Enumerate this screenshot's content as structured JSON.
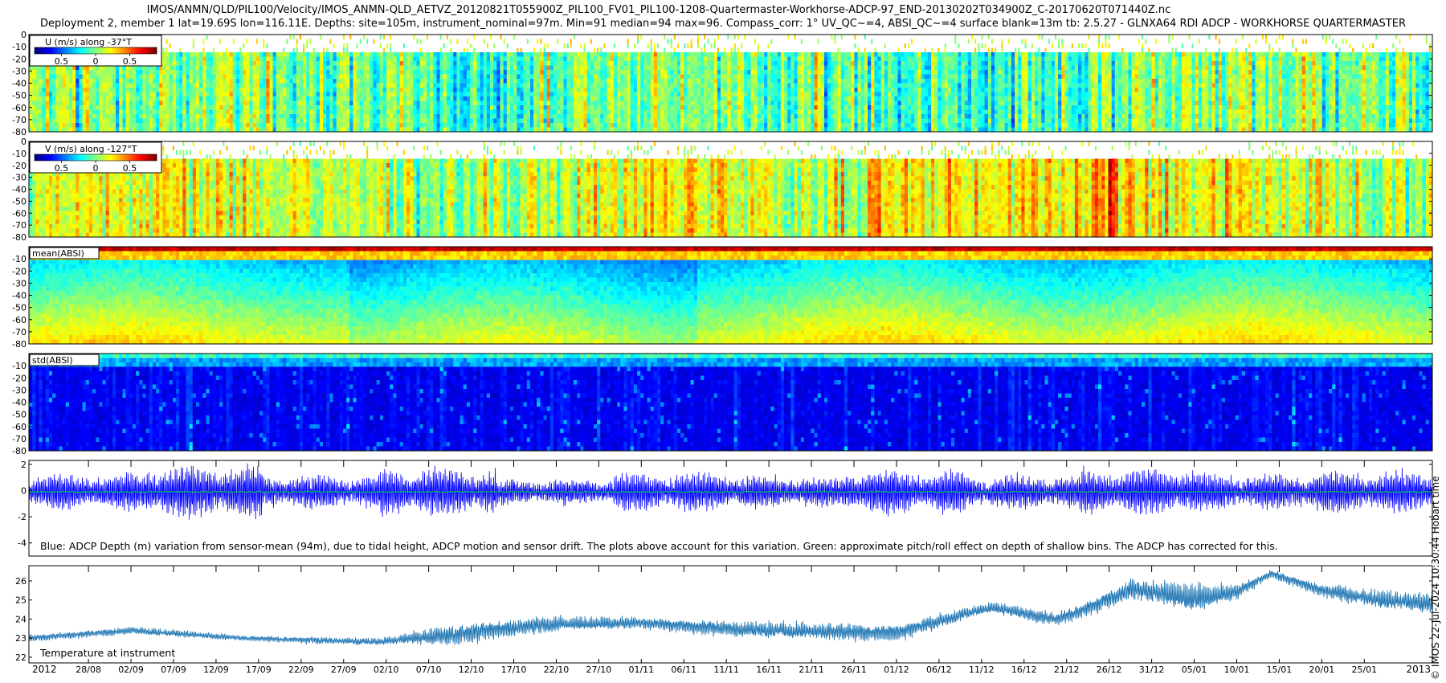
{
  "header": {
    "title_line_1": "IMOS/ANMN/QLD/PIL100/Velocity/IMOS_ANMN-QLD_AETVZ_20120821T055900Z_PIL100_FV01_PIL100-1208-Quartermaster-Workhorse-ADCP-97_END-20130202T034900Z_C-20170620T071440Z.nc",
    "title_line_2": "Deployment 2, member 1 lat=19.69S lon=116.11E. Depths: site=105m, instrument_nominal=97m. Min=91 median=94 max=96. Compass_corr: 1° UV_QC~=4, ABSI_QC~=4 surface blank=13m tb: 2.5.27 - GLNXA64 RDI ADCP - WORKHORSE QUARTERMASTER"
  },
  "side_note": "© IMOS 22-Jul-2024 10:30:44 Hobart time",
  "chart_data": [
    {
      "type": "heatmap",
      "id": "u",
      "legend_title": "U (m/s) along -37°T",
      "colorbar_ticks": [
        "0.5",
        "0",
        "0.5"
      ],
      "ylim": [
        -80,
        0
      ],
      "yticks": [
        0,
        -10,
        -20,
        -30,
        -40,
        -50,
        -60,
        -70,
        -80
      ],
      "surface_blank_m": 13,
      "colormap": "jet",
      "value_range": [
        -0.5,
        0.5
      ],
      "base_value": -0.02,
      "variability": 0.2
    },
    {
      "type": "heatmap",
      "id": "v",
      "legend_title": "V (m/s) along -127°T",
      "colorbar_ticks": [
        "0.5",
        "0",
        "0.5"
      ],
      "ylim": [
        -80,
        0
      ],
      "yticks": [
        0,
        -10,
        -20,
        -30,
        -40,
        -50,
        -60,
        -70,
        -80
      ],
      "surface_blank_m": 13,
      "colormap": "jet",
      "value_range": [
        -0.5,
        0.5
      ],
      "base_value": 0.08,
      "variability": 0.18
    },
    {
      "type": "heatmap",
      "id": "mean-absi",
      "legend_title": "mean(ABSI)",
      "ylim": [
        -80,
        0
      ],
      "yticks": [
        -10,
        -20,
        -30,
        -40,
        -50,
        -60,
        -70,
        -80
      ],
      "colormap": "jet"
    },
    {
      "type": "heatmap",
      "id": "std-absi",
      "legend_title": "std(ABSI)",
      "ylim": [
        -80,
        0
      ],
      "yticks": [
        -10,
        -20,
        -30,
        -40,
        -50,
        -60,
        -70,
        -80
      ],
      "colormap": "jet"
    },
    {
      "type": "line",
      "id": "depth-variation",
      "ylim": [
        -5,
        2.3
      ],
      "yticks": [
        2,
        0,
        -2,
        -4
      ],
      "annotation": "Blue: ADCP Depth (m) variation from sensor-mean (94m), due to tidal height, ADCP motion and sensor drift. The plots above account for this variation. Green: approximate pitch/roll effect on depth of shallow bins. The ADCP has corrected for this.",
      "series": [
        {
          "color": "#0000ff",
          "tidal_amplitude_m": [
            1.3,
            1.9,
            1.2,
            1.7,
            0.9,
            1.4,
            1.1,
            1.6,
            1.2,
            1.7,
            1.3,
            1.5
          ]
        },
        {
          "color": "#00cc44",
          "offset_m": -0.1
        }
      ]
    },
    {
      "type": "line",
      "id": "temperature",
      "ylim": [
        21.7,
        26.8
      ],
      "yticks": [
        22,
        23,
        24,
        25,
        26
      ],
      "label": "Temperature at instrument",
      "series": [
        {
          "color": "#1f77b4",
          "x": [
            "2012-08-21",
            "2012-09-02",
            "2012-09-15",
            "2012-10-01",
            "2012-10-10",
            "2012-10-20",
            "2012-11-01",
            "2012-11-15",
            "2012-12-01",
            "2012-12-12",
            "2012-12-20",
            "2012-12-29",
            "2013-01-05",
            "2013-01-10",
            "2013-01-14",
            "2013-01-20",
            "2013-01-27",
            "2013-02-02"
          ],
          "values": [
            23.0,
            23.4,
            23.0,
            22.8,
            23.2,
            23.7,
            23.8,
            23.4,
            23.3,
            24.6,
            24.0,
            25.6,
            25.0,
            25.4,
            26.4,
            25.5,
            25.0,
            24.8
          ],
          "noise": [
            0.2,
            0.2,
            0.15,
            0.2,
            0.55,
            0.45,
            0.3,
            0.45,
            0.45,
            0.3,
            0.35,
            0.55,
            0.8,
            0.4,
            0.2,
            0.35,
            0.5,
            0.5
          ]
        }
      ]
    }
  ],
  "time_axis": {
    "start": "2012-08-21",
    "end": "2013-02-02",
    "tick_labels": [
      {
        "date": "2012-08-28",
        "label": "28/08"
      },
      {
        "date": "2012-09-02",
        "label": "02/09"
      },
      {
        "date": "2012-09-07",
        "label": "07/09"
      },
      {
        "date": "2012-09-12",
        "label": "12/09"
      },
      {
        "date": "2012-09-17",
        "label": "17/09"
      },
      {
        "date": "2012-09-22",
        "label": "22/09"
      },
      {
        "date": "2012-09-27",
        "label": "27/09"
      },
      {
        "date": "2012-10-02",
        "label": "02/10"
      },
      {
        "date": "2012-10-07",
        "label": "07/10"
      },
      {
        "date": "2012-10-12",
        "label": "12/10"
      },
      {
        "date": "2012-10-17",
        "label": "17/10"
      },
      {
        "date": "2012-10-22",
        "label": "22/10"
      },
      {
        "date": "2012-10-27",
        "label": "27/10"
      },
      {
        "date": "2012-11-01",
        "label": "01/11"
      },
      {
        "date": "2012-11-06",
        "label": "06/11"
      },
      {
        "date": "2012-11-11",
        "label": "11/11"
      },
      {
        "date": "2012-11-16",
        "label": "16/11"
      },
      {
        "date": "2012-11-21",
        "label": "21/11"
      },
      {
        "date": "2012-11-26",
        "label": "26/11"
      },
      {
        "date": "2012-12-01",
        "label": "01/12"
      },
      {
        "date": "2012-12-06",
        "label": "06/12"
      },
      {
        "date": "2012-12-11",
        "label": "11/12"
      },
      {
        "date": "2012-12-16",
        "label": "16/12"
      },
      {
        "date": "2012-12-21",
        "label": "21/12"
      },
      {
        "date": "2012-12-26",
        "label": "26/12"
      },
      {
        "date": "2012-12-31",
        "label": "31/12"
      },
      {
        "date": "2013-01-05",
        "label": "05/01"
      },
      {
        "date": "2013-01-10",
        "label": "10/01"
      },
      {
        "date": "2013-01-15",
        "label": "15/01"
      },
      {
        "date": "2013-01-20",
        "label": "20/01"
      },
      {
        "date": "2013-01-25",
        "label": "25/01"
      }
    ],
    "year_start": {
      "date": "2012-08-21",
      "label": "2012"
    },
    "year_end": {
      "date": "2013-02-02",
      "label": "2013"
    }
  }
}
